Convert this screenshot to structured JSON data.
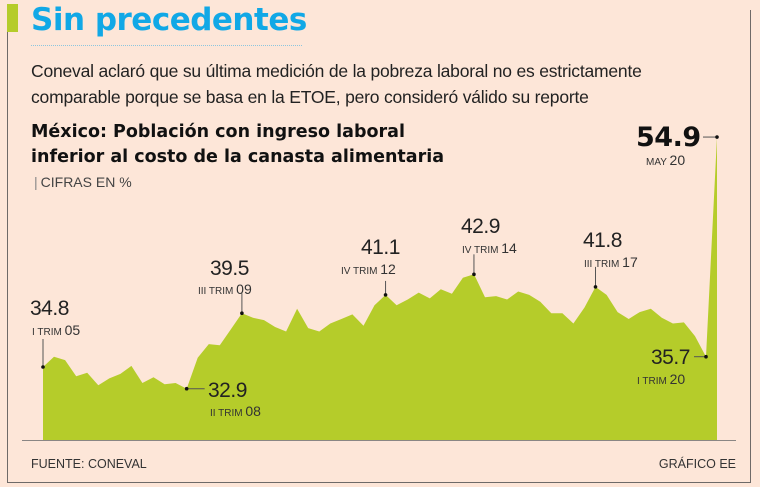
{
  "header": {
    "title": "Sin precedentes",
    "subtitle": "Coneval aclaró que su última medición de la pobreza laboral no es estrictamente comparable porque se basa en la ETOE, pero consideró válido su reporte"
  },
  "chart": {
    "title": "México: Población con ingreso laboral inferior al costo de la canasta alimentaria",
    "units": "CIFRAS EN %",
    "annotations": [
      {
        "id": "a1",
        "value": "34.8",
        "period": "I TRIM",
        "year": "05"
      },
      {
        "id": "a2",
        "value": "32.9",
        "period": "II TRIM",
        "year": "08"
      },
      {
        "id": "a3",
        "value": "39.5",
        "period": "III TRIM",
        "year": "09"
      },
      {
        "id": "a4",
        "value": "41.1",
        "period": "IV TRIM",
        "year": "12"
      },
      {
        "id": "a5",
        "value": "42.9",
        "period": "IV TRIM",
        "year": "14"
      },
      {
        "id": "a6",
        "value": "41.8",
        "period": "III TRIM",
        "year": "17"
      },
      {
        "id": "a7",
        "value": "35.7",
        "period": "I TRIM",
        "year": "20"
      },
      {
        "id": "a8",
        "value": "54.9",
        "period": "MAY",
        "year": "20"
      }
    ],
    "fill_color": "#b5cc2a",
    "title_color": "#11a8e6"
  },
  "footer": {
    "source": "FUENTE: CONEVAL",
    "credit": "GRÁFICO EE"
  },
  "chart_data": {
    "type": "area",
    "title": "México: Población con ingreso laboral inferior al costo de la canasta alimentaria",
    "subtitle": "CIFRAS EN %",
    "xlabel": "",
    "ylabel": "%",
    "grid": false,
    "legend": "none",
    "x": [
      "I-05",
      "II-05",
      "III-05",
      "IV-05",
      "I-06",
      "II-06",
      "III-06",
      "IV-06",
      "I-07",
      "II-07",
      "III-07",
      "IV-07",
      "I-08",
      "II-08",
      "III-08",
      "IV-08",
      "I-09",
      "II-09",
      "III-09",
      "IV-09",
      "I-10",
      "II-10",
      "III-10",
      "IV-10",
      "I-11",
      "II-11",
      "III-11",
      "IV-11",
      "I-12",
      "II-12",
      "III-12",
      "IV-12",
      "I-13",
      "II-13",
      "III-13",
      "IV-13",
      "I-14",
      "II-14",
      "III-14",
      "IV-14",
      "I-15",
      "II-15",
      "III-15",
      "IV-15",
      "I-16",
      "II-16",
      "III-16",
      "IV-16",
      "I-17",
      "II-17",
      "III-17",
      "IV-17",
      "I-18",
      "II-18",
      "III-18",
      "IV-18",
      "I-19",
      "II-19",
      "III-19",
      "IV-19",
      "I-20",
      "May-20"
    ],
    "values": [
      34.8,
      35.7,
      35.4,
      34.0,
      34.3,
      33.2,
      33.8,
      34.2,
      34.9,
      33.4,
      33.9,
      33.3,
      33.4,
      32.9,
      35.6,
      36.8,
      36.7,
      38.1,
      39.5,
      39.1,
      38.9,
      38.3,
      37.9,
      39.9,
      38.2,
      37.9,
      38.6,
      39.0,
      39.4,
      38.4,
      40.2,
      41.1,
      40.2,
      40.7,
      41.3,
      40.8,
      41.6,
      41.2,
      42.6,
      42.9,
      40.9,
      41.0,
      40.7,
      41.4,
      41.1,
      40.5,
      39.5,
      39.5,
      38.6,
      40.0,
      41.8,
      41.1,
      39.6,
      39.0,
      39.6,
      39.9,
      39.1,
      38.6,
      38.7,
      37.5,
      35.7,
      54.9
    ],
    "annotated_points": [
      {
        "x": "I-05",
        "y": 34.8,
        "label": "I TRIM 05"
      },
      {
        "x": "II-08",
        "y": 32.9,
        "label": "II TRIM 08"
      },
      {
        "x": "III-09",
        "y": 39.5,
        "label": "III TRIM 09"
      },
      {
        "x": "IV-12",
        "y": 41.1,
        "label": "IV TRIM 12"
      },
      {
        "x": "IV-14",
        "y": 42.9,
        "label": "IV TRIM 14"
      },
      {
        "x": "III-17",
        "y": 41.8,
        "label": "III TRIM 17"
      },
      {
        "x": "I-20",
        "y": 35.7,
        "label": "I TRIM 20"
      },
      {
        "x": "May-20",
        "y": 54.9,
        "label": "MAY 20"
      }
    ],
    "source": "FUENTE: CONEVAL",
    "credit": "GRÁFICO EE"
  }
}
